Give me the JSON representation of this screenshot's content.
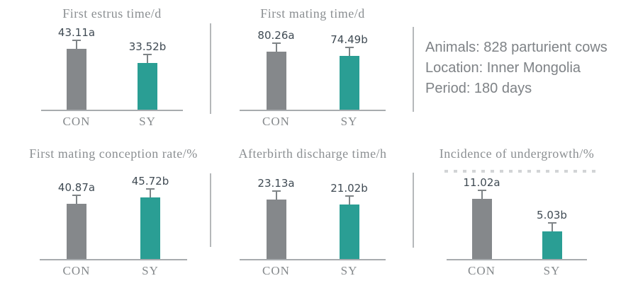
{
  "info_panel": {
    "lines": [
      "Animals: 828 parturient cows",
      "Location: Inner Mongolia",
      "Period: 180 days"
    ]
  },
  "chart_data": [
    {
      "type": "bar",
      "title": "First estrus time/d",
      "categories": [
        "CON",
        "SY"
      ],
      "values": [
        43.11,
        33.52
      ],
      "value_labels": [
        "43.11a",
        "33.52b"
      ],
      "ylim": [
        0,
        62
      ],
      "grid": false,
      "legend": "none",
      "error_bars": true
    },
    {
      "type": "bar",
      "title": "First mating time/d",
      "categories": [
        "CON",
        "SY"
      ],
      "values": [
        80.26,
        74.49
      ],
      "value_labels": [
        "80.26a",
        "74.49b"
      ],
      "ylim": [
        0,
        120
      ],
      "grid": false,
      "legend": "none",
      "error_bars": true
    },
    {
      "type": "bar",
      "title": "First mating conception rate/%",
      "categories": [
        "CON",
        "SY"
      ],
      "values": [
        40.87,
        45.72
      ],
      "value_labels": [
        "40.87a",
        "45.72b"
      ],
      "ylim": [
        0,
        65
      ],
      "grid": false,
      "legend": "none",
      "error_bars": true
    },
    {
      "type": "bar",
      "title": "Afterbirth discharge time/h",
      "categories": [
        "CON",
        "SY"
      ],
      "values": [
        23.13,
        21.02
      ],
      "value_labels": [
        "23.13a",
        "21.02b"
      ],
      "ylim": [
        0,
        34
      ],
      "grid": false,
      "legend": "none",
      "error_bars": true
    },
    {
      "type": "bar",
      "title": "Incidence of undergrowth/%",
      "categories": [
        "CON",
        "SY"
      ],
      "values": [
        11.02,
        5.03
      ],
      "value_labels": [
        "11.02a",
        "5.03b"
      ],
      "ylim": [
        0,
        16
      ],
      "grid": false,
      "legend": "none",
      "error_bars": true
    }
  ],
  "colors": {
    "con_bar": "#85888b",
    "sy_bar": "#2a9e94",
    "error_bar": "#7f8487",
    "axis": "#a8abae",
    "title_text": "#8b8f92",
    "category_text": "#85898c",
    "value_text": "#3f4a53",
    "info_text": "#7e8286",
    "divider": "#b5b8ba",
    "background": "#ffffff"
  }
}
